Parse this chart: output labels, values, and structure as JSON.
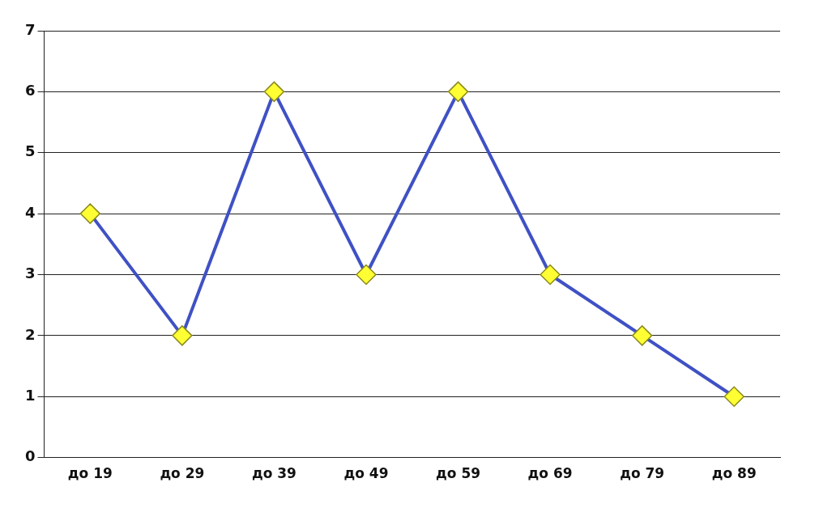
{
  "chart_data": {
    "type": "line",
    "categories": [
      "до 19",
      "до 29",
      "до 39",
      "до 49",
      "до 59",
      "до 69",
      "до 79",
      "до 89"
    ],
    "values": [
      4,
      2,
      6,
      3,
      6,
      3,
      2,
      1
    ],
    "color": "#3f51c4",
    "colors": [
      "#ffff33",
      "#ffff33",
      "#ffff33",
      "#ffff33",
      "#ffff33",
      "#ffff33",
      "#ffff33",
      "#ffff33"
    ],
    "ylim": [
      0,
      7
    ],
    "yticks": [
      0,
      1,
      2,
      3,
      4,
      5,
      6,
      7
    ],
    "grid": "y",
    "marker": "diamond",
    "line_style": "solid"
  }
}
